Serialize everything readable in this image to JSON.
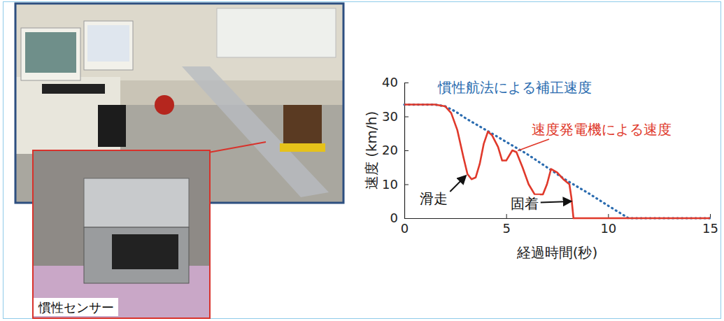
{
  "chart_data": {
    "type": "line",
    "xlim": [
      0,
      15
    ],
    "ylim": [
      0,
      40
    ],
    "xticks": [
      0,
      5,
      10,
      15
    ],
    "yticks": [
      0,
      10,
      20,
      30,
      40
    ],
    "x_label": "経過時間(秒)",
    "y_label": "速度 (km/h)",
    "legend": "upper right",
    "series": [
      {
        "name": "慣性航法による補正速度",
        "color": "#2b6cb0",
        "line_style": "dotted",
        "x": [
          0,
          1.5,
          2.0,
          2.5,
          3,
          4,
          5,
          6,
          7,
          8,
          9,
          10,
          11,
          15
        ],
        "values": [
          33.5,
          33.5,
          33,
          31.5,
          29.5,
          26,
          22.5,
          19,
          15,
          11,
          7.5,
          3.7,
          0,
          0
        ]
      },
      {
        "name": "速度発電機による速度",
        "color": "#e0392b",
        "line_style": "solid",
        "x": [
          0,
          1.5,
          2.0,
          2.3,
          2.6,
          2.9,
          3.1,
          3.3,
          3.5,
          3.7,
          3.9,
          4.1,
          4.3,
          4.6,
          4.8,
          5.0,
          5.3,
          5.5,
          5.8,
          6.1,
          6.4,
          6.8,
          7.0,
          7.2,
          7.5,
          7.8,
          8.1,
          8.2,
          8.3,
          15
        ],
        "values": [
          33.5,
          33.5,
          33,
          31,
          26,
          18,
          13,
          11.5,
          12,
          16,
          22,
          25.5,
          24.5,
          21,
          17,
          17,
          20,
          19.5,
          15,
          10,
          7,
          7,
          10,
          14.5,
          13.5,
          11.5,
          10,
          6,
          0,
          0
        ]
      }
    ],
    "annotations": [
      {
        "text": "滑走",
        "x": 3.1,
        "y": 13
      },
      {
        "text": "固着",
        "x": 8.3,
        "y": 5
      }
    ]
  },
  "photo": {
    "inset_label": "慣性センサー"
  }
}
